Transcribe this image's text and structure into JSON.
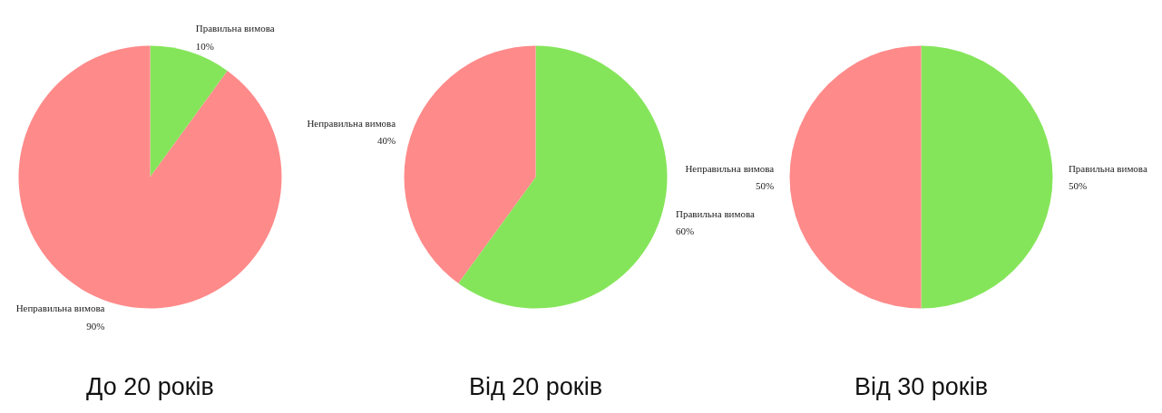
{
  "chart_data": [
    {
      "type": "pie",
      "title": "До 20 років",
      "categories": [
        "Правильна вимова",
        "Неправильна вимова"
      ],
      "values": [
        10,
        90
      ],
      "value_labels": [
        "10%",
        "90%"
      ],
      "colors": [
        "#85e55a",
        "#ff8a8a"
      ]
    },
    {
      "type": "pie",
      "title": "Від 20 років",
      "categories": [
        "Правильна вимова",
        "Неправильна вимова"
      ],
      "values": [
        60,
        40
      ],
      "value_labels": [
        "60%",
        "40%"
      ],
      "colors": [
        "#85e55a",
        "#ff8a8a"
      ]
    },
    {
      "type": "pie",
      "title": "Від 30 років",
      "categories": [
        "Правильна вимова",
        "Неправильна вимова"
      ],
      "values": [
        50,
        50
      ],
      "value_labels": [
        "50%",
        "50%"
      ],
      "colors": [
        "#85e55a",
        "#ff8a8a"
      ]
    }
  ]
}
